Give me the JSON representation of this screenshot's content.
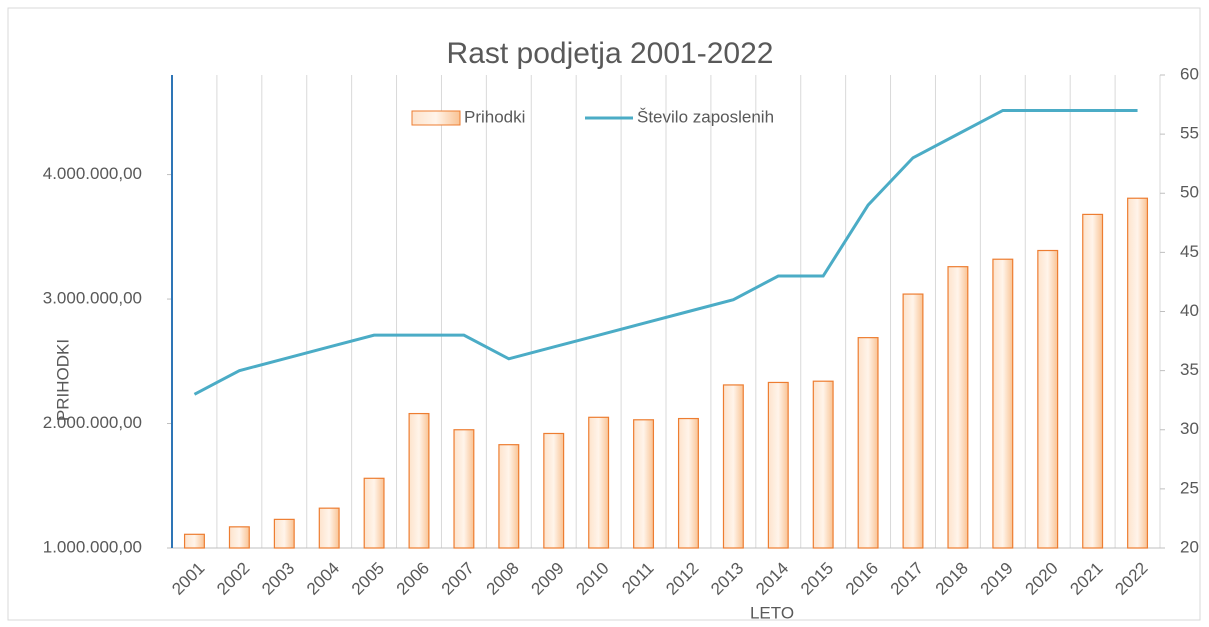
{
  "chart_data": {
    "type": "bar-line",
    "title": "Rast podjetja 2001-2022",
    "y_label": "PRIHODKI",
    "x_label": "LETO",
    "categories": [
      "2001",
      "2002",
      "2003",
      "2004",
      "2005",
      "2006",
      "2007",
      "2008",
      "2009",
      "2010",
      "2011",
      "2012",
      "2013",
      "2014",
      "2015",
      "2016",
      "2017",
      "2018",
      "2019",
      "2020",
      "2021",
      "2022"
    ],
    "series": [
      {
        "name": "Prihodki",
        "color": "#ed7d31",
        "type": "bar",
        "values": [
          1110000,
          1170000,
          1230000,
          1320000,
          1560000,
          2080000,
          1950000,
          1830000,
          1920000,
          2050000,
          2030000,
          2040000,
          2310000,
          2330000,
          2340000,
          2690000,
          3040000,
          3260000,
          3320000,
          3390000,
          3680000,
          3810000
        ]
      },
      {
        "name": "Število zaposlenih",
        "color": "#4bacc6",
        "type": "line",
        "axis": "y2",
        "values": [
          33,
          35,
          36,
          37,
          38,
          38,
          38,
          36,
          37,
          38,
          39,
          40,
          41,
          43,
          43,
          49,
          53,
          55,
          57,
          57,
          57,
          57
        ]
      }
    ],
    "ylim": [
      1000000,
      4800000
    ],
    "yticks": [
      {
        "value": 1000000,
        "label": "1.000.000,00"
      },
      {
        "value": 2000000,
        "label": "2.000.000,00"
      },
      {
        "value": 3000000,
        "label": "3.000.000,00"
      },
      {
        "value": 4000000,
        "label": "4.000.000,00"
      }
    ],
    "y2lim": [
      20,
      60
    ],
    "y2ticks": [
      20,
      25,
      30,
      35,
      40,
      45,
      50,
      55,
      60
    ],
    "grid": "vertical",
    "legend": "top"
  }
}
